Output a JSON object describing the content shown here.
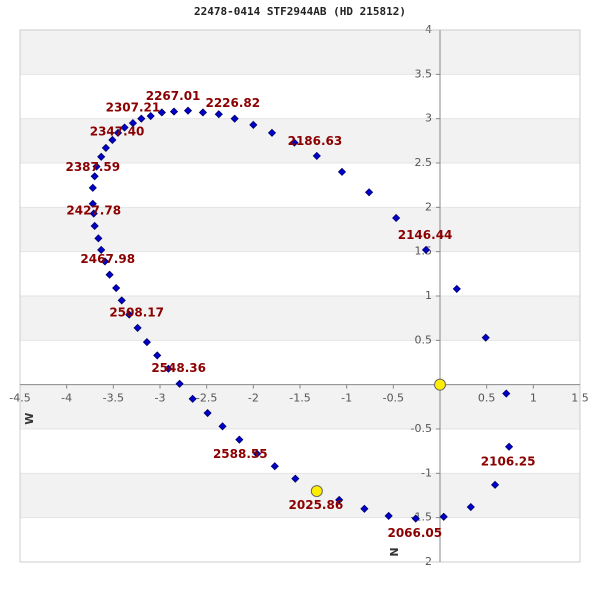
{
  "chart_data": {
    "type": "scatter",
    "title": "22478-0414 STF2944AB (HD 215812)",
    "xlabel": "W",
    "ylabel": "N",
    "xlim": [
      -4.5,
      1.5
    ],
    "ylim": [
      -2.0,
      4.0
    ],
    "xticks": [
      -4.5,
      -4.0,
      -3.5,
      -3.0,
      -2.5,
      -2.0,
      -1.5,
      -1.0,
      -0.5,
      0.5,
      1.0,
      1.5
    ],
    "yticks": [
      -2.0,
      -1.5,
      -1.0,
      -0.5,
      0.5,
      1.0,
      1.5,
      2.0,
      2.5,
      3.0,
      3.5,
      4.0
    ],
    "grid": "bands",
    "band_color": "#f2f2f2",
    "series": [
      {
        "color": "#0000cc",
        "x": [
          -1.08,
          -0.81,
          -0.55,
          -0.26,
          0.04,
          0.33,
          0.59,
          0.74,
          0.71,
          0.49,
          0.18,
          -0.15,
          -0.47,
          -0.76,
          -1.05,
          -1.32,
          -1.56,
          -1.8,
          -2.0,
          -2.2,
          -2.37,
          -2.54,
          -2.7,
          -2.85,
          -2.98,
          -3.1,
          -3.2,
          -3.29,
          -3.38,
          -3.45,
          -3.51,
          -3.58,
          -3.63,
          -3.68,
          -3.7,
          -3.72,
          -3.72,
          -3.71,
          -3.7,
          -3.66,
          -3.63,
          -3.59,
          -3.54,
          -3.47,
          -3.41,
          -3.33,
          -3.24,
          -3.14,
          -3.03,
          -2.91,
          -2.79,
          -2.65,
          -2.49,
          -2.33,
          -2.15,
          -1.96,
          -1.77,
          -1.55
        ],
        "y": [
          -1.3,
          -1.4,
          -1.48,
          -1.51,
          -1.49,
          -1.38,
          -1.13,
          -0.7,
          -0.1,
          0.53,
          1.08,
          1.52,
          1.88,
          2.17,
          2.4,
          2.58,
          2.73,
          2.84,
          2.93,
          3.0,
          3.05,
          3.07,
          3.09,
          3.08,
          3.07,
          3.03,
          3.0,
          2.95,
          2.9,
          2.84,
          2.76,
          2.67,
          2.57,
          2.46,
          2.35,
          2.22,
          2.04,
          1.93,
          1.79,
          1.65,
          1.52,
          1.39,
          1.24,
          1.09,
          0.95,
          0.79,
          0.64,
          0.48,
          0.33,
          0.18,
          0.01,
          -0.16,
          -0.32,
          -0.47,
          -0.62,
          -0.78,
          -0.92,
          -1.06
        ]
      },
      {
        "color": "#ffee00",
        "x": [
          0,
          -1.32
        ],
        "y": [
          0,
          -1.2
        ]
      }
    ],
    "annotations": [
      {
        "text": "2025.86",
        "x": -1.33,
        "y": -1.36
      },
      {
        "text": "2066.05",
        "x": -0.27,
        "y": -1.68
      },
      {
        "text": "2106.25",
        "x": 0.73,
        "y": -0.87
      },
      {
        "text": "2146.44",
        "x": -0.16,
        "y": 1.68
      },
      {
        "text": "2186.63",
        "x": -1.34,
        "y": 2.74
      },
      {
        "text": "2226.82",
        "x": -2.22,
        "y": 3.17
      },
      {
        "text": "2267.01",
        "x": -2.86,
        "y": 3.25
      },
      {
        "text": "2307.21",
        "x": -3.29,
        "y": 3.12
      },
      {
        "text": "2347.40",
        "x": -3.46,
        "y": 2.85
      },
      {
        "text": "2387.59",
        "x": -3.72,
        "y": 2.45
      },
      {
        "text": "2427.78",
        "x": -3.71,
        "y": 1.96
      },
      {
        "text": "2467.98",
        "x": -3.56,
        "y": 1.41
      },
      {
        "text": "2508.17",
        "x": -3.25,
        "y": 0.81
      },
      {
        "text": "2548.36",
        "x": -2.8,
        "y": 0.18
      },
      {
        "text": "2588.55",
        "x": -2.14,
        "y": -0.79
      }
    ],
    "annotation_color": "#8b0000"
  }
}
